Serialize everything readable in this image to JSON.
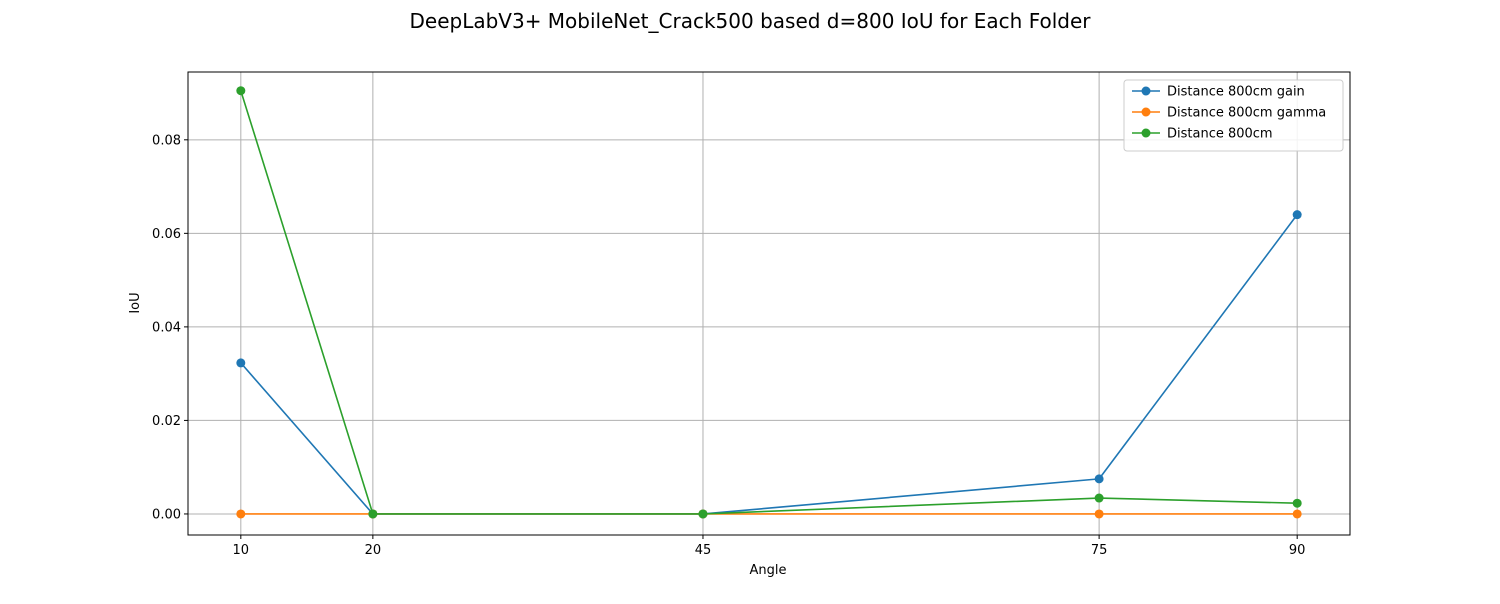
{
  "chart_data": {
    "type": "line",
    "title": "DeepLabV3+ MobileNet_Crack500 based d=800 IoU for Each Folder",
    "xlabel": "Angle",
    "ylabel": "IoU",
    "x": [
      10,
      20,
      45,
      75,
      90
    ],
    "x_tick_labels": [
      "10",
      "20",
      "45",
      "75",
      "90"
    ],
    "xlim": [
      6,
      94
    ],
    "ylim": [
      -0.0045,
      0.0945
    ],
    "y_ticks": [
      0.0,
      0.02,
      0.04,
      0.06,
      0.08
    ],
    "y_tick_labels": [
      "0.00",
      "0.02",
      "0.04",
      "0.06",
      "0.08"
    ],
    "grid": true,
    "legend_position": "top-right",
    "marker": "circle",
    "series": [
      {
        "name": "Distance 800cm gain",
        "color": "#1f77b4",
        "values": [
          0.0323,
          0.0,
          0.0,
          0.0075,
          0.064
        ]
      },
      {
        "name": "Distance 800cm gamma",
        "color": "#ff7f0e",
        "values": [
          0.0,
          0.0,
          0.0,
          0.0,
          0.0
        ]
      },
      {
        "name": "Distance 800cm",
        "color": "#2ca02c",
        "values": [
          0.0905,
          0.0,
          0.0,
          0.0034,
          0.0023
        ]
      }
    ]
  }
}
